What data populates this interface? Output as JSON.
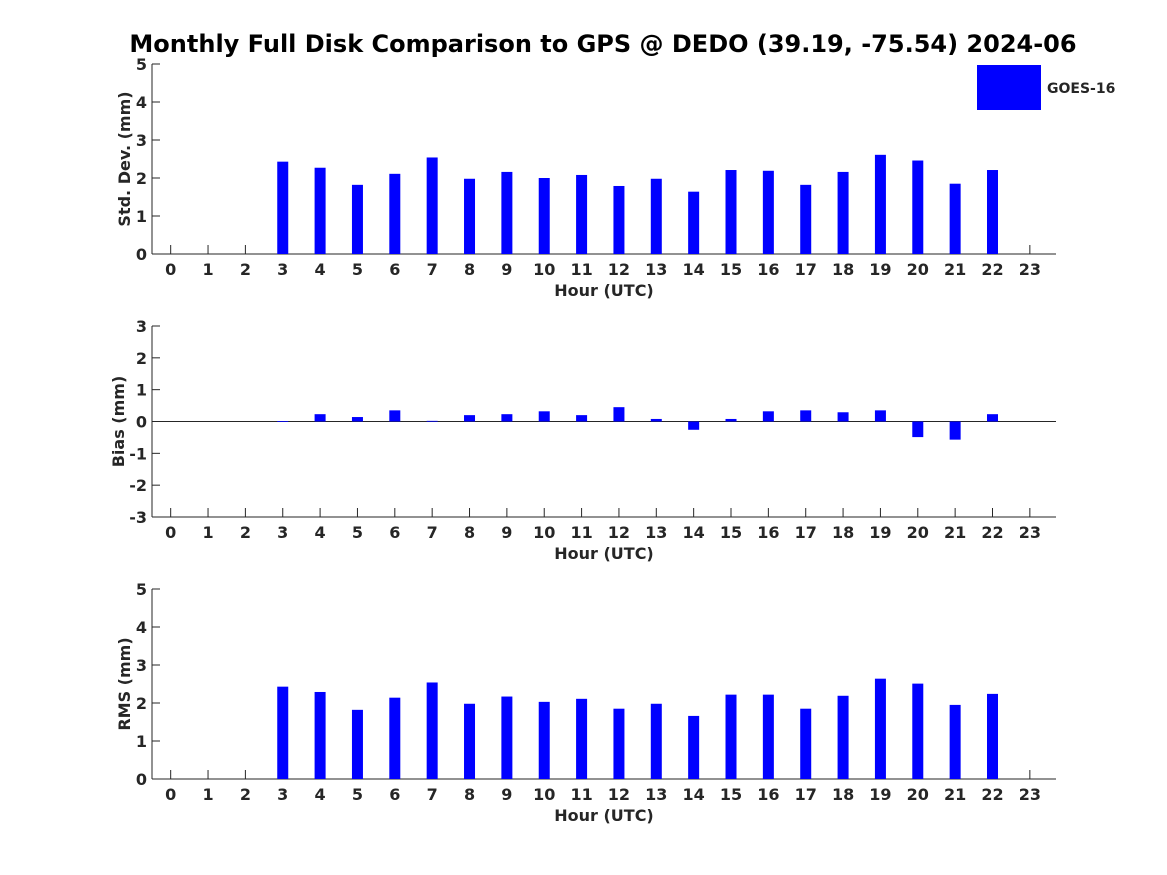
{
  "figure": {
    "title": "Monthly Full Disk Comparison to GPS @ DEDO (39.19, -75.54) 2024-06",
    "legend_label": "GOES-16",
    "legend_placement": "top-right",
    "bar_color": "#0000ff"
  },
  "chart_data": [
    {
      "type": "bar",
      "ylabel": "Std. Dev. (mm)",
      "xlabel": "Hour (UTC)",
      "ylim": [
        0,
        5
      ],
      "yticks": [
        0,
        1,
        2,
        3,
        4,
        5
      ],
      "categories": [
        "0",
        "1",
        "2",
        "3",
        "4",
        "5",
        "6",
        "7",
        "8",
        "9",
        "10",
        "11",
        "12",
        "13",
        "14",
        "15",
        "16",
        "17",
        "18",
        "19",
        "20",
        "21",
        "22",
        "23"
      ],
      "series": [
        {
          "name": "GOES-16",
          "values": [
            null,
            null,
            null,
            2.43,
            2.27,
            1.82,
            2.11,
            2.54,
            1.98,
            2.16,
            2.0,
            2.08,
            1.79,
            1.98,
            1.64,
            2.21,
            2.19,
            1.82,
            2.16,
            2.61,
            2.46,
            1.85,
            2.21,
            null
          ]
        }
      ]
    },
    {
      "type": "bar",
      "ylabel": "Bias (mm)",
      "xlabel": "Hour (UTC)",
      "ylim": [
        -3,
        3
      ],
      "yticks": [
        -3,
        -2,
        -1,
        0,
        1,
        2,
        3
      ],
      "zero_line": true,
      "categories": [
        "0",
        "1",
        "2",
        "3",
        "4",
        "5",
        "6",
        "7",
        "8",
        "9",
        "10",
        "11",
        "12",
        "13",
        "14",
        "15",
        "16",
        "17",
        "18",
        "19",
        "20",
        "21",
        "22",
        "23"
      ],
      "series": [
        {
          "name": "GOES-16",
          "values": [
            null,
            null,
            null,
            0.01,
            0.23,
            0.14,
            0.35,
            0.02,
            0.2,
            0.23,
            0.32,
            0.2,
            0.45,
            0.08,
            -0.26,
            0.08,
            0.32,
            0.35,
            0.29,
            0.35,
            -0.49,
            -0.57,
            0.23,
            null
          ]
        }
      ]
    },
    {
      "type": "bar",
      "ylabel": "RMS (mm)",
      "xlabel": "Hour (UTC)",
      "ylim": [
        0,
        5
      ],
      "yticks": [
        0,
        1,
        2,
        3,
        4,
        5
      ],
      "categories": [
        "0",
        "1",
        "2",
        "3",
        "4",
        "5",
        "6",
        "7",
        "8",
        "9",
        "10",
        "11",
        "12",
        "13",
        "14",
        "15",
        "16",
        "17",
        "18",
        "19",
        "20",
        "21",
        "22",
        "23"
      ],
      "series": [
        {
          "name": "GOES-16",
          "values": [
            null,
            null,
            null,
            2.43,
            2.29,
            1.82,
            2.14,
            2.54,
            1.98,
            2.17,
            2.03,
            2.11,
            1.85,
            1.98,
            1.66,
            2.22,
            2.22,
            1.85,
            2.19,
            2.64,
            2.51,
            1.95,
            2.24,
            null
          ]
        }
      ]
    }
  ]
}
